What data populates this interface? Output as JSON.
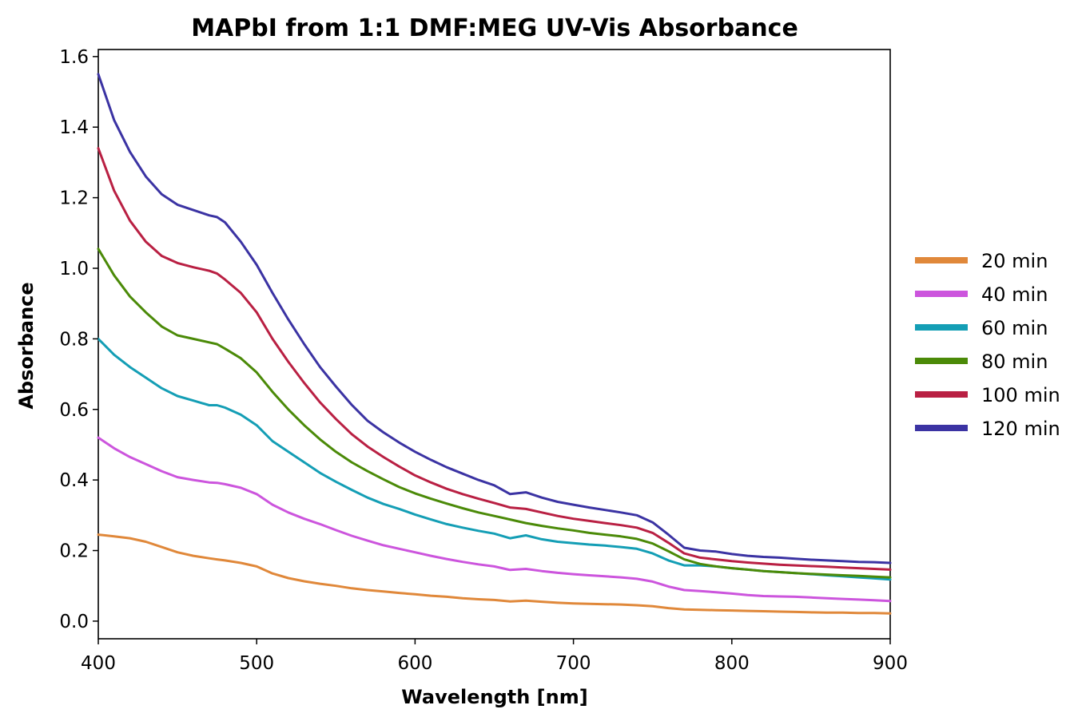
{
  "chart_data": {
    "type": "line",
    "title": "MAPbI from 1:1 DMF:MEG UV-Vis Absorbance",
    "xlabel": "Wavelength [nm]",
    "ylabel": "Absorbance",
    "xlim": [
      400,
      900
    ],
    "ylim": [
      -0.05,
      1.62
    ],
    "xticks": [
      400,
      500,
      600,
      700,
      800,
      900
    ],
    "xtick_labels": [
      "400",
      "500",
      "600",
      "700",
      "800",
      "900"
    ],
    "yticks": [
      0.0,
      0.2,
      0.4,
      0.6,
      0.8,
      1.0,
      1.2,
      1.4,
      1.6
    ],
    "ytick_labels": [
      "0.0",
      "0.2",
      "0.4",
      "0.6",
      "0.8",
      "1.0",
      "1.2",
      "1.4",
      "1.6"
    ],
    "grid": false,
    "legend_position": "right",
    "x": [
      400,
      410,
      420,
      430,
      440,
      450,
      460,
      470,
      475,
      480,
      490,
      500,
      510,
      520,
      530,
      540,
      550,
      560,
      570,
      580,
      590,
      600,
      610,
      620,
      630,
      640,
      650,
      660,
      670,
      680,
      690,
      700,
      710,
      720,
      730,
      740,
      750,
      760,
      770,
      780,
      790,
      800,
      810,
      820,
      830,
      840,
      850,
      860,
      870,
      880,
      890,
      900
    ],
    "series": [
      {
        "name": "20 min",
        "color": "#e0883a",
        "values": [
          0.245,
          0.24,
          0.235,
          0.225,
          0.21,
          0.195,
          0.185,
          0.178,
          0.175,
          0.172,
          0.165,
          0.155,
          0.135,
          0.122,
          0.113,
          0.106,
          0.1,
          0.093,
          0.088,
          0.084,
          0.08,
          0.076,
          0.072,
          0.069,
          0.065,
          0.062,
          0.06,
          0.056,
          0.058,
          0.055,
          0.052,
          0.05,
          0.049,
          0.048,
          0.047,
          0.045,
          0.042,
          0.037,
          0.033,
          0.032,
          0.031,
          0.03,
          0.029,
          0.028,
          0.027,
          0.026,
          0.025,
          0.024,
          0.024,
          0.023,
          0.023,
          0.022
        ]
      },
      {
        "name": "40 min",
        "color": "#cc55dd",
        "values": [
          0.52,
          0.49,
          0.465,
          0.445,
          0.425,
          0.408,
          0.4,
          0.393,
          0.392,
          0.388,
          0.378,
          0.36,
          0.33,
          0.308,
          0.29,
          0.275,
          0.258,
          0.242,
          0.228,
          0.215,
          0.205,
          0.195,
          0.185,
          0.176,
          0.168,
          0.161,
          0.155,
          0.145,
          0.148,
          0.142,
          0.137,
          0.133,
          0.13,
          0.127,
          0.124,
          0.12,
          0.112,
          0.098,
          0.088,
          0.085,
          0.082,
          0.078,
          0.074,
          0.071,
          0.07,
          0.069,
          0.067,
          0.065,
          0.063,
          0.061,
          0.059,
          0.057
        ]
      },
      {
        "name": "60 min",
        "color": "#149eb5",
        "values": [
          0.8,
          0.755,
          0.72,
          0.69,
          0.66,
          0.638,
          0.625,
          0.612,
          0.612,
          0.605,
          0.585,
          0.555,
          0.51,
          0.48,
          0.45,
          0.42,
          0.395,
          0.372,
          0.35,
          0.332,
          0.318,
          0.302,
          0.288,
          0.275,
          0.265,
          0.256,
          0.248,
          0.235,
          0.243,
          0.232,
          0.225,
          0.221,
          0.217,
          0.214,
          0.21,
          0.205,
          0.192,
          0.172,
          0.158,
          0.158,
          0.155,
          0.15,
          0.146,
          0.142,
          0.139,
          0.136,
          0.133,
          0.13,
          0.127,
          0.124,
          0.121,
          0.118
        ]
      },
      {
        "name": "80 min",
        "color": "#4b8a08",
        "values": [
          1.055,
          0.98,
          0.92,
          0.875,
          0.835,
          0.81,
          0.8,
          0.79,
          0.785,
          0.772,
          0.745,
          0.705,
          0.65,
          0.6,
          0.555,
          0.515,
          0.48,
          0.45,
          0.425,
          0.402,
          0.38,
          0.362,
          0.347,
          0.333,
          0.32,
          0.308,
          0.298,
          0.288,
          0.278,
          0.27,
          0.263,
          0.257,
          0.25,
          0.245,
          0.24,
          0.233,
          0.22,
          0.198,
          0.175,
          0.162,
          0.155,
          0.15,
          0.146,
          0.142,
          0.139,
          0.136,
          0.134,
          0.132,
          0.13,
          0.128,
          0.126,
          0.124
        ]
      },
      {
        "name": "100 min",
        "color": "#b92043",
        "values": [
          1.34,
          1.22,
          1.135,
          1.075,
          1.035,
          1.015,
          1.003,
          0.993,
          0.985,
          0.968,
          0.93,
          0.875,
          0.8,
          0.735,
          0.675,
          0.62,
          0.573,
          0.53,
          0.495,
          0.465,
          0.438,
          0.413,
          0.393,
          0.375,
          0.36,
          0.347,
          0.335,
          0.322,
          0.318,
          0.308,
          0.298,
          0.29,
          0.284,
          0.278,
          0.272,
          0.265,
          0.25,
          0.222,
          0.192,
          0.18,
          0.175,
          0.17,
          0.166,
          0.163,
          0.16,
          0.158,
          0.156,
          0.154,
          0.152,
          0.15,
          0.148,
          0.146
        ]
      },
      {
        "name": "120 min",
        "color": "#3b33a3",
        "values": [
          1.55,
          1.42,
          1.33,
          1.26,
          1.21,
          1.18,
          1.165,
          1.15,
          1.145,
          1.13,
          1.075,
          1.01,
          0.93,
          0.855,
          0.785,
          0.72,
          0.665,
          0.613,
          0.568,
          0.535,
          0.506,
          0.48,
          0.457,
          0.436,
          0.418,
          0.4,
          0.385,
          0.36,
          0.365,
          0.35,
          0.338,
          0.33,
          0.322,
          0.315,
          0.308,
          0.3,
          0.28,
          0.245,
          0.208,
          0.2,
          0.197,
          0.19,
          0.185,
          0.182,
          0.18,
          0.177,
          0.174,
          0.172,
          0.17,
          0.168,
          0.167,
          0.165
        ]
      }
    ]
  }
}
